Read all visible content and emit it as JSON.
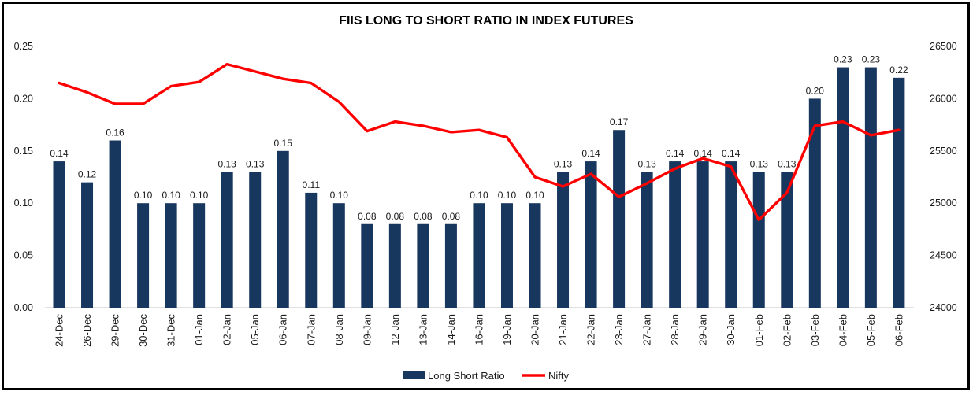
{
  "title": "FIIS LONG TO SHORT RATIO IN INDEX FUTURES",
  "legend": {
    "bar_label": "Long Short Ratio",
    "line_label": "Nifty"
  },
  "colors": {
    "bar": "#17375E",
    "line": "#FF0000",
    "text": "#1A1A1A",
    "axis_line": "#D9D9D9",
    "frame": "#000000"
  },
  "chart_data": {
    "type": "combo-bar-line",
    "title": "FIIS LONG TO SHORT RATIO IN INDEX FUTURES",
    "grid": false,
    "legend_position": "bottom",
    "categories": [
      "24-Dec",
      "26-Dec",
      "29-Dec",
      "30-Dec",
      "31-Dec",
      "01-Jan",
      "02-Jan",
      "05-Jan",
      "06-Jan",
      "07-Jan",
      "08-Jan",
      "09-Jan",
      "12-Jan",
      "13-Jan",
      "14-Jan",
      "16-Jan",
      "19-Jan",
      "20-Jan",
      "21-Jan",
      "22-Jan",
      "23-Jan",
      "27-Jan",
      "28-Jan",
      "29-Jan",
      "30-Jan",
      "01-Feb",
      "02-Feb",
      "03-Feb",
      "04-Feb",
      "05-Feb",
      "06-Feb"
    ],
    "series": [
      {
        "name": "Long Short Ratio",
        "type": "bar",
        "axis": "left",
        "data_labels": true,
        "values": [
          0.14,
          0.12,
          0.16,
          0.1,
          0.1,
          0.1,
          0.13,
          0.13,
          0.15,
          0.11,
          0.1,
          0.08,
          0.08,
          0.08,
          0.08,
          0.1,
          0.1,
          0.1,
          0.13,
          0.14,
          0.17,
          0.13,
          0.14,
          0.14,
          0.14,
          0.13,
          0.13,
          0.2,
          0.23,
          0.23,
          0.22
        ]
      },
      {
        "name": "Nifty",
        "type": "line",
        "axis": "right",
        "data_labels": false,
        "values": [
          26150,
          26060,
          25950,
          25950,
          26120,
          26160,
          26330,
          26260,
          26190,
          26150,
          25970,
          25690,
          25780,
          25740,
          25680,
          25700,
          25630,
          25250,
          25160,
          25280,
          25060,
          25190,
          25330,
          25430,
          25350,
          24840,
          25100,
          25740,
          25780,
          25650,
          25700
        ]
      }
    ],
    "left_axis": {
      "min": 0,
      "max": 0.25,
      "ticks": [
        "0.00",
        "0.05",
        "0.10",
        "0.15",
        "0.20",
        "0.25"
      ]
    },
    "right_axis": {
      "min": 24000,
      "max": 26500,
      "ticks": [
        "24000",
        "24500",
        "25000",
        "25500",
        "26000",
        "26500"
      ]
    }
  }
}
